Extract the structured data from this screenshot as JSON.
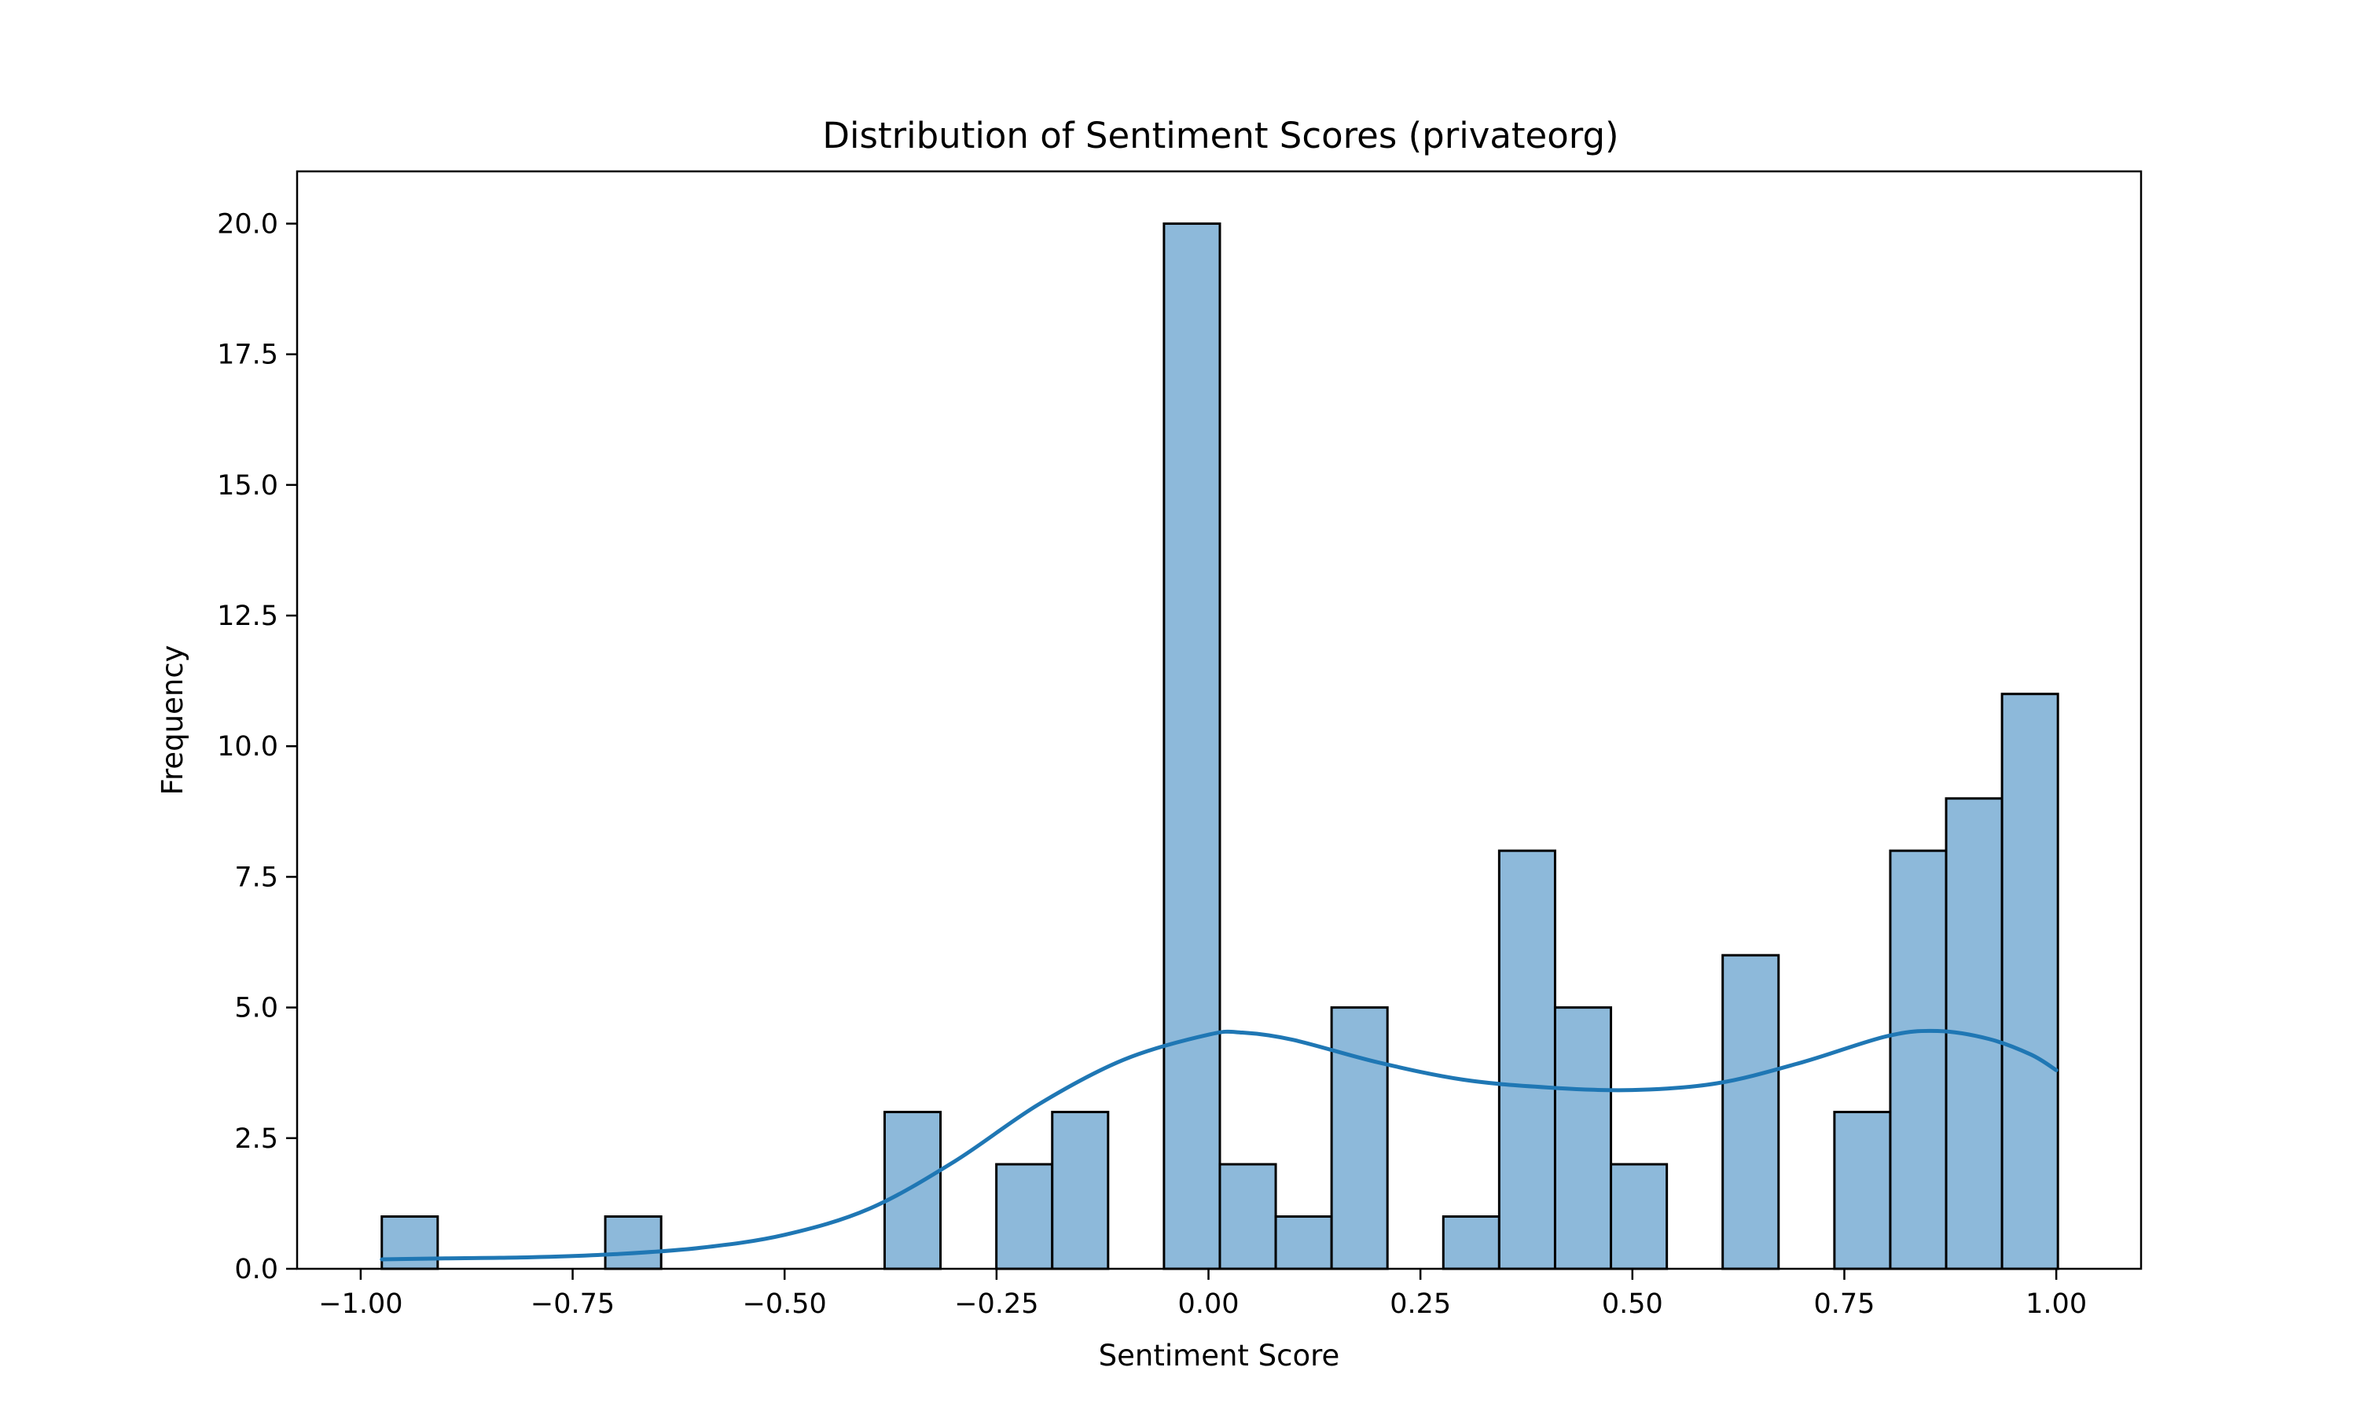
{
  "chart_data": {
    "type": "bar",
    "subtype": "histogram_with_kde",
    "title": "Distribution of Sentiment Scores (privateorg)",
    "xlabel": "Sentiment Score",
    "ylabel": "Frequency",
    "xlim": [
      -1.075,
      1.1
    ],
    "ylim": [
      0,
      21
    ],
    "xticks": [
      -1.0,
      -0.75,
      -0.5,
      -0.25,
      0.0,
      0.25,
      0.5,
      0.75,
      1.0
    ],
    "xtick_labels": [
      "−1.00",
      "−0.75",
      "−0.50",
      "−0.25",
      "0.00",
      "0.25",
      "0.50",
      "0.75",
      "1.00"
    ],
    "yticks": [
      0.0,
      2.5,
      5.0,
      7.5,
      10.0,
      12.5,
      15.0,
      17.5,
      20.0
    ],
    "ytick_labels": [
      "0.0",
      "2.5",
      "5.0",
      "7.5",
      "10.0",
      "12.5",
      "15.0",
      "17.5",
      "20.0"
    ],
    "bin_start": -0.9751,
    "bin_width": 0.0659,
    "counts": [
      1,
      0,
      0,
      0,
      1,
      0,
      0,
      0,
      0,
      3,
      0,
      2,
      3,
      0,
      20,
      2,
      1,
      5,
      0,
      1,
      8,
      5,
      2,
      0,
      6,
      0,
      3,
      8,
      9,
      11
    ],
    "bar_color": "#8db9da",
    "bar_edge_color": "#000000",
    "kde_color": "#1f77b4",
    "kde": {
      "x": [
        -0.975,
        -0.9,
        -0.8,
        -0.7,
        -0.6,
        -0.5,
        -0.4,
        -0.3,
        -0.2,
        -0.1,
        0.0,
        0.04,
        0.1,
        0.2,
        0.3,
        0.4,
        0.5,
        0.6,
        0.7,
        0.8,
        0.86,
        0.92,
        0.97,
        1.0
      ],
      "y": [
        0.18,
        0.2,
        0.22,
        0.28,
        0.4,
        0.65,
        1.15,
        2.05,
        3.15,
        4.0,
        4.48,
        4.52,
        4.38,
        3.95,
        3.62,
        3.47,
        3.42,
        3.55,
        3.95,
        4.45,
        4.55,
        4.4,
        4.1,
        3.8
      ]
    }
  }
}
